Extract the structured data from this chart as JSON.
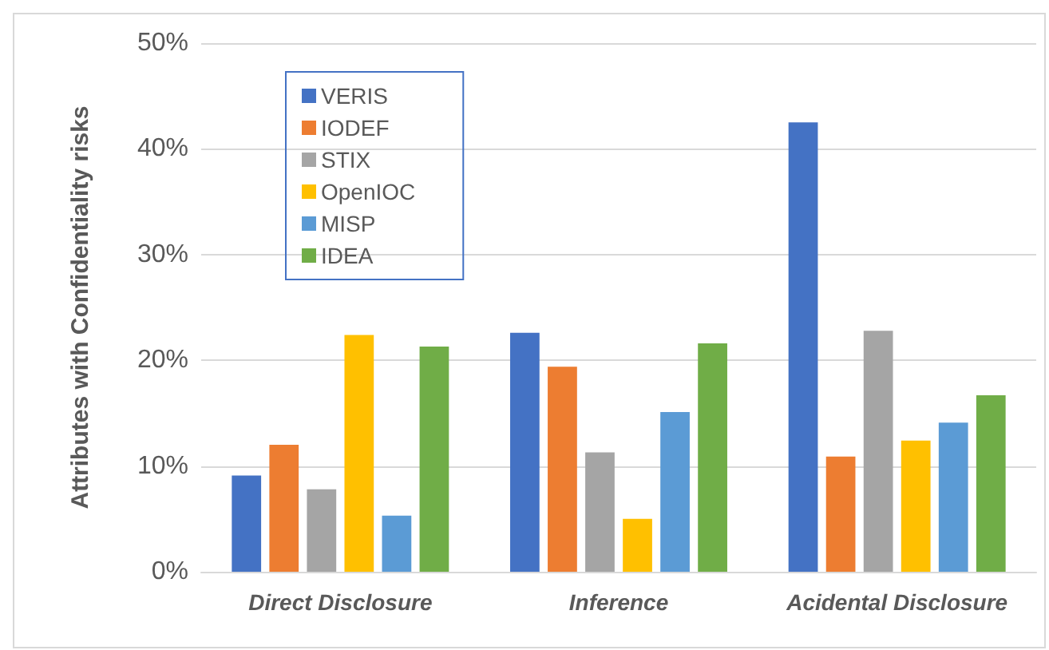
{
  "chart_data": {
    "type": "bar",
    "ylabel": "Attributes with Confidentiality risks",
    "categories": [
      "Direct Disclosure",
      "Inference",
      "Acidental Disclosure"
    ],
    "series": [
      {
        "name": "VERIS",
        "color": "#4472c4",
        "values": [
          9.1,
          22.6,
          42.5
        ]
      },
      {
        "name": "IODEF",
        "color": "#ed7d31",
        "values": [
          12.0,
          19.4,
          10.9
        ]
      },
      {
        "name": "STIX",
        "color": "#a5a5a5",
        "values": [
          7.8,
          11.3,
          22.8
        ]
      },
      {
        "name": "OpenIOC",
        "color": "#ffc000",
        "values": [
          22.4,
          5.0,
          12.4
        ]
      },
      {
        "name": "MISP",
        "color": "#5b9bd5",
        "values": [
          5.3,
          15.1,
          14.1
        ]
      },
      {
        "name": "IDEA",
        "color": "#70ad47",
        "values": [
          21.3,
          21.6,
          16.7
        ]
      }
    ],
    "ylim": [
      0,
      50
    ],
    "yticks": [
      {
        "value": 0,
        "label": "0%"
      },
      {
        "value": 10,
        "label": "10%"
      },
      {
        "value": 20,
        "label": "20%"
      },
      {
        "value": 30,
        "label": "30%"
      },
      {
        "value": 40,
        "label": "40%"
      },
      {
        "value": 50,
        "label": "50%"
      }
    ],
    "grid": "y",
    "legend": "top left"
  }
}
